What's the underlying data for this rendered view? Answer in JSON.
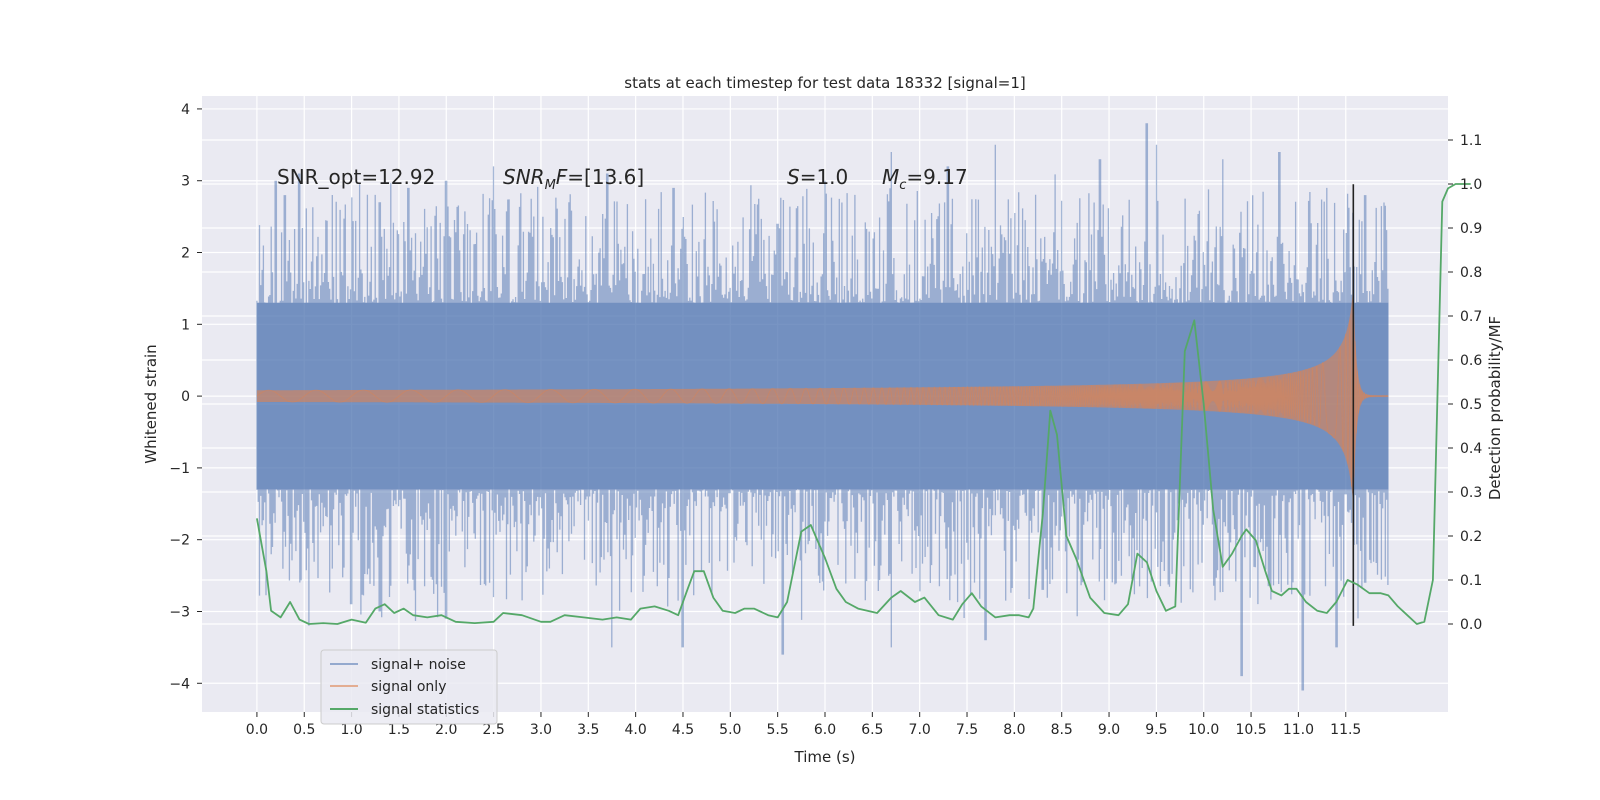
{
  "chart_data": {
    "type": "line",
    "title": "stats at each timestep for test data 18332 [signal=1]",
    "xlabel": "Time (s)",
    "ylabel": "Whitened strain",
    "ylabel_right": "Detection probability/MF",
    "xlim": [
      -0.58,
      12.58
    ],
    "ylim": [
      -4.4,
      4.18
    ],
    "ylim_right": [
      -0.2,
      1.2
    ],
    "x_ticks": [
      "0.0",
      "0.5",
      "1.0",
      "1.5",
      "2.0",
      "2.5",
      "3.0",
      "3.5",
      "4.0",
      "4.5",
      "5.0",
      "5.5",
      "6.0",
      "6.5",
      "7.0",
      "7.5",
      "8.0",
      "8.5",
      "9.0",
      "9.5",
      "10.0",
      "10.5",
      "11.0",
      "11.5"
    ],
    "y_ticks": [
      "4",
      "3",
      "2",
      "1",
      "0",
      "−1",
      "−2",
      "−3",
      "−4"
    ],
    "y_ticks_right": [
      "1.1",
      "1.0",
      "0.9",
      "0.8",
      "0.7",
      "0.6",
      "0.5",
      "0.4",
      "0.3",
      "0.2",
      "0.1",
      "0.0"
    ],
    "grid": true,
    "legend_position": "lower-left",
    "annotations": [
      {
        "text": "SNR_opt=12.92",
        "x": 0.2,
        "y": 3.0
      },
      {
        "text": "SNR_MF=[13.6]",
        "x": 2.6,
        "y": 3.0
      },
      {
        "text": "S=1.0",
        "x": 5.6,
        "y": 3.0
      },
      {
        "text": "M_c=9.17",
        "x": 6.6,
        "y": 3.0
      }
    ],
    "merger_time": 11.58,
    "series": [
      {
        "name": "signal+ noise",
        "color": "#4c72b0",
        "opacity": 0.5,
        "duration": 11.95,
        "envelope_typical": 1.3,
        "envelope_peaks": [
          [
            0.2,
            3.0
          ],
          [
            0.3,
            2.8
          ],
          [
            0.45,
            3.1
          ],
          [
            1.3,
            2.7
          ],
          [
            1.6,
            2.9
          ],
          [
            2.0,
            3.0
          ],
          [
            2.5,
            3.2
          ],
          [
            3.3,
            2.7
          ],
          [
            3.7,
            3.1
          ],
          [
            4.4,
            2.9
          ],
          [
            5.5,
            2.4
          ],
          [
            6.0,
            3.0
          ],
          [
            6.7,
            3.4
          ],
          [
            7.3,
            3.2
          ],
          [
            7.8,
            3.5
          ],
          [
            8.9,
            3.3
          ],
          [
            9.4,
            3.8
          ],
          [
            9.5,
            3.5
          ],
          [
            10.2,
            3.3
          ],
          [
            10.8,
            3.4
          ],
          [
            11.3,
            2.9
          ],
          [
            11.7,
            2.8
          ],
          [
            0.55,
            -3.2
          ],
          [
            1.0,
            -2.9
          ],
          [
            1.3,
            -3.0
          ],
          [
            2.0,
            -3.1
          ],
          [
            2.5,
            -2.8
          ],
          [
            3.75,
            -3.5
          ],
          [
            4.5,
            -3.5
          ],
          [
            5.55,
            -3.6
          ],
          [
            6.7,
            -3.5
          ],
          [
            7.7,
            -3.4
          ],
          [
            8.3,
            -2.7
          ],
          [
            10.4,
            -3.9
          ],
          [
            11.05,
            -4.1
          ],
          [
            11.4,
            -3.5
          ],
          [
            11.7,
            -2.6
          ]
        ]
      },
      {
        "name": "signal only",
        "color": "#dd8452",
        "opacity": 0.7,
        "amplitude_start": 0.03,
        "amplitude_peak": 1.55,
        "merger_time": 11.58,
        "end_time": 11.95
      },
      {
        "name": "signal statistics",
        "color": "#55a868",
        "axis": "right",
        "points": [
          [
            0.0,
            0.24
          ],
          [
            0.1,
            0.12
          ],
          [
            0.15,
            0.03
          ],
          [
            0.25,
            0.015
          ],
          [
            0.35,
            0.05
          ],
          [
            0.45,
            0.01
          ],
          [
            0.55,
            0.0
          ],
          [
            0.7,
            0.002
          ],
          [
            0.85,
            0.0
          ],
          [
            1.0,
            0.01
          ],
          [
            1.15,
            0.003
          ],
          [
            1.25,
            0.035
          ],
          [
            1.35,
            0.045
          ],
          [
            1.45,
            0.025
          ],
          [
            1.55,
            0.035
          ],
          [
            1.65,
            0.02
          ],
          [
            1.8,
            0.015
          ],
          [
            1.95,
            0.02
          ],
          [
            2.1,
            0.005
          ],
          [
            2.3,
            0.002
          ],
          [
            2.5,
            0.005
          ],
          [
            2.6,
            0.025
          ],
          [
            2.8,
            0.02
          ],
          [
            3.0,
            0.005
          ],
          [
            3.1,
            0.005
          ],
          [
            3.25,
            0.02
          ],
          [
            3.45,
            0.015
          ],
          [
            3.65,
            0.01
          ],
          [
            3.8,
            0.015
          ],
          [
            3.95,
            0.01
          ],
          [
            4.05,
            0.035
          ],
          [
            4.2,
            0.04
          ],
          [
            4.35,
            0.03
          ],
          [
            4.45,
            0.02
          ],
          [
            4.55,
            0.08
          ],
          [
            4.62,
            0.12
          ],
          [
            4.72,
            0.12
          ],
          [
            4.82,
            0.06
          ],
          [
            4.92,
            0.03
          ],
          [
            5.05,
            0.025
          ],
          [
            5.15,
            0.035
          ],
          [
            5.25,
            0.035
          ],
          [
            5.4,
            0.02
          ],
          [
            5.5,
            0.015
          ],
          [
            5.6,
            0.05
          ],
          [
            5.75,
            0.21
          ],
          [
            5.85,
            0.225
          ],
          [
            6.0,
            0.15
          ],
          [
            6.12,
            0.08
          ],
          [
            6.22,
            0.05
          ],
          [
            6.35,
            0.035
          ],
          [
            6.55,
            0.025
          ],
          [
            6.7,
            0.06
          ],
          [
            6.8,
            0.075
          ],
          [
            6.95,
            0.05
          ],
          [
            7.05,
            0.06
          ],
          [
            7.2,
            0.02
          ],
          [
            7.35,
            0.01
          ],
          [
            7.45,
            0.045
          ],
          [
            7.55,
            0.07
          ],
          [
            7.65,
            0.04
          ],
          [
            7.8,
            0.015
          ],
          [
            7.95,
            0.02
          ],
          [
            8.05,
            0.02
          ],
          [
            8.15,
            0.015
          ],
          [
            8.2,
            0.035
          ],
          [
            8.3,
            0.25
          ],
          [
            8.38,
            0.485
          ],
          [
            8.45,
            0.43
          ],
          [
            8.55,
            0.2
          ],
          [
            8.65,
            0.15
          ],
          [
            8.8,
            0.06
          ],
          [
            8.95,
            0.025
          ],
          [
            9.1,
            0.02
          ],
          [
            9.2,
            0.045
          ],
          [
            9.3,
            0.16
          ],
          [
            9.4,
            0.14
          ],
          [
            9.5,
            0.075
          ],
          [
            9.6,
            0.03
          ],
          [
            9.7,
            0.04
          ],
          [
            9.8,
            0.62
          ],
          [
            9.9,
            0.69
          ],
          [
            10.0,
            0.5
          ],
          [
            10.1,
            0.26
          ],
          [
            10.2,
            0.13
          ],
          [
            10.3,
            0.16
          ],
          [
            10.4,
            0.2
          ],
          [
            10.45,
            0.215
          ],
          [
            10.55,
            0.19
          ],
          [
            10.65,
            0.12
          ],
          [
            10.72,
            0.075
          ],
          [
            10.82,
            0.065
          ],
          [
            10.9,
            0.08
          ],
          [
            10.98,
            0.08
          ],
          [
            11.08,
            0.05
          ],
          [
            11.2,
            0.03
          ],
          [
            11.3,
            0.025
          ],
          [
            11.4,
            0.05
          ],
          [
            11.52,
            0.1
          ],
          [
            11.62,
            0.09
          ],
          [
            11.75,
            0.07
          ],
          [
            11.87,
            0.07
          ],
          [
            11.95,
            0.065
          ],
          [
            12.05,
            0.04
          ],
          [
            12.15,
            0.02
          ],
          [
            12.25,
            0.0
          ],
          [
            12.33,
            0.005
          ],
          [
            12.42,
            0.1
          ],
          [
            12.52,
            0.96
          ],
          [
            12.58,
            0.99
          ],
          [
            12.66,
            1.0
          ],
          [
            12.82,
            1.0
          ]
        ]
      }
    ]
  }
}
